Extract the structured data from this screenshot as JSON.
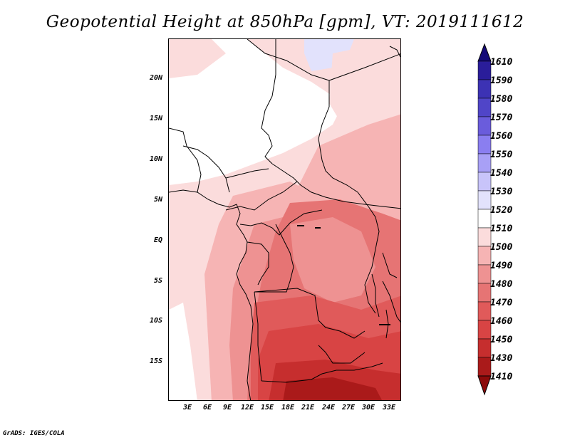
{
  "title": "Geopotential Height at 850hPa [gpm], VT: 2019111612",
  "credit": "GrADS: IGES/COLA",
  "lat_labels": [
    "20N",
    "15N",
    "10N",
    "5N",
    "EQ",
    "5S",
    "10S",
    "15S"
  ],
  "lon_labels": [
    "3E",
    "6E",
    "9E",
    "12E",
    "15E",
    "18E",
    "21E",
    "24E",
    "27E",
    "30E",
    "33E"
  ],
  "colorbar": {
    "levels": [
      "1610",
      "1590",
      "1580",
      "1570",
      "1560",
      "1550",
      "1540",
      "1530",
      "1520",
      "1510",
      "1500",
      "1490",
      "1480",
      "1470",
      "1460",
      "1450",
      "1430",
      "1410"
    ],
    "colors": [
      "#140a78",
      "#2a1d9a",
      "#3c32b4",
      "#5045c8",
      "#6a5cdc",
      "#8a7ef0",
      "#a8a0f6",
      "#c8c4fa",
      "#e2e2fc",
      "#ffffff",
      "#fbdcdc",
      "#f6b4b4",
      "#ee9292",
      "#e67474",
      "#e05a5a",
      "#d84444",
      "#c62e2e",
      "#aa1a1a",
      "#8c0a0a"
    ]
  },
  "chart_data": {
    "type": "heatmap",
    "field": "Geopotential Height at 850hPa",
    "units": "gpm",
    "valid_time": "2019111612",
    "lon_range": [
      0,
      34.5
    ],
    "lat_range": [
      -20,
      24.5
    ],
    "palette": {
      "1510": "#ffffff",
      "1500": "#fbdcdc",
      "1490": "#f6b4b4",
      "1480": "#ee9292",
      "1470": "#e67474",
      "1460": "#e05a5a",
      "1450": "#d84444",
      "1430": "#c62e2e",
      "1410": "#aa1a1a",
      "1520": "#e2e2fc"
    }
  }
}
